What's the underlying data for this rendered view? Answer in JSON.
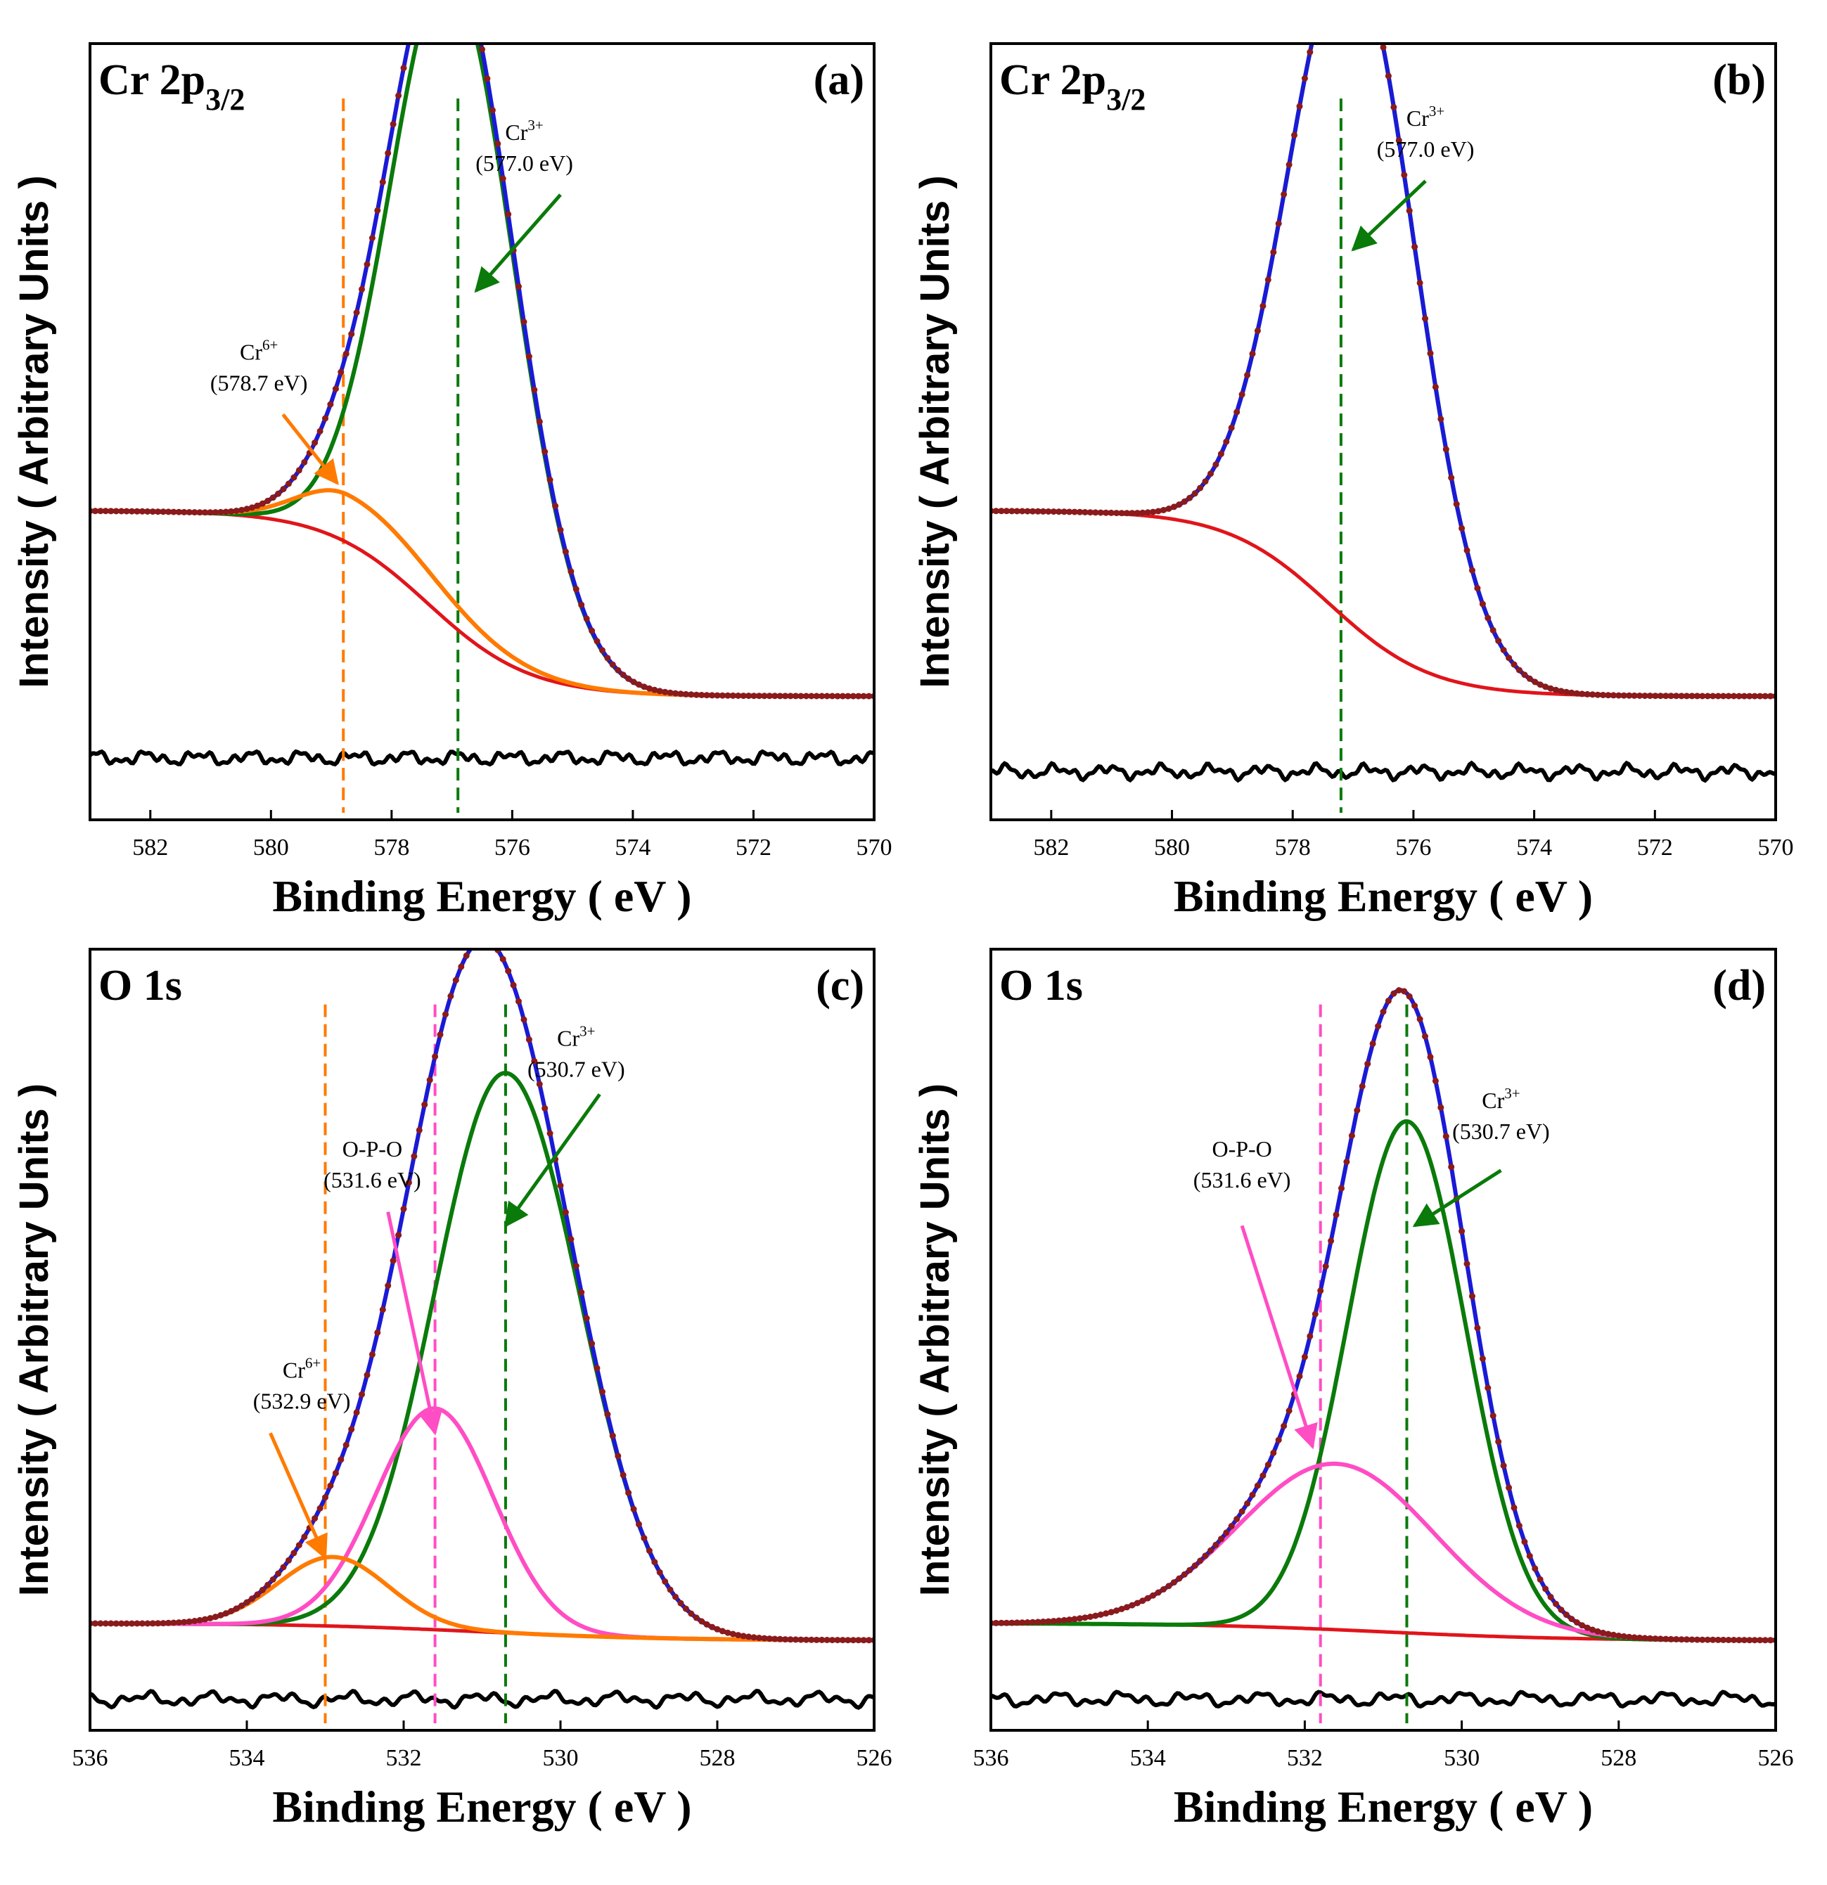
{
  "figure": {
    "panels": [
      {
        "id": "a",
        "title_main": "Cr 2p",
        "title_sub": "3/2",
        "tag": "(a)",
        "xlabel": "Binding Energy ( eV )",
        "ylabel": "Intensity ( Arbitrary Units )",
        "show_tick_labels": true
      },
      {
        "id": "b",
        "title_main": "Cr 2p",
        "title_sub": "3/2",
        "tag": "(b)",
        "xlabel": "Binding Energy ( eV )",
        "ylabel": "Intensity ( Arbitrary Units )",
        "show_tick_labels": true
      },
      {
        "id": "c",
        "title_main": "O 1s",
        "title_sub": "",
        "tag": "(c)",
        "xlabel": "Binding Energy ( eV )",
        "ylabel": "Intensity ( Arbitrary Units )",
        "show_tick_labels": true
      },
      {
        "id": "d",
        "title_main": "O 1s",
        "title_sub": "",
        "tag": "(d)",
        "xlabel": "Binding Energy ( eV )",
        "ylabel": "Intensity ( Arbitrary Units )",
        "show_tick_labels": true
      }
    ]
  },
  "chart_data": [
    {
      "type": "line",
      "panel": "a",
      "title": "Cr 2p3/2",
      "xlabel": "Binding Energy ( eV )",
      "ylabel": "Intensity ( Arbitrary Units )",
      "xlim": [
        583,
        570
      ],
      "xticks": [
        582,
        580,
        578,
        576,
        574,
        572,
        570
      ],
      "x_reversed": true,
      "ylim": [
        -0.13,
        1.0
      ],
      "baseline": {
        "high": 0.32,
        "low": 0.05,
        "center": 577.4,
        "width": 0.85
      },
      "residual_offset": -0.04,
      "components": [
        {
          "name": "Cr3+",
          "center": 577.0,
          "amplitude": 0.95,
          "sigma_left": 1.0,
          "sigma_right": 1.05,
          "color": "#0a7a0a"
        },
        {
          "name": "Cr6+",
          "center": 578.7,
          "amplitude": 0.07,
          "sigma_left": 0.8,
          "sigma_right": 1.5,
          "color": "#ff7a00"
        }
      ],
      "markers": [
        {
          "x": 578.8,
          "color": "#ff7a00"
        },
        {
          "x": 576.9,
          "color": "#0a7a0a"
        }
      ],
      "annotations": [
        {
          "label": "Cr",
          "sup": "3+",
          "value": "(577.0 eV)",
          "color": "#0a7a0a",
          "text_x": 575.8,
          "text_y": 0.86,
          "arrow_from": [
            575.2,
            0.78
          ],
          "arrow_to": [
            576.6,
            0.64
          ]
        },
        {
          "label": "Cr",
          "sup": "6+",
          "value": "(578.7 eV)",
          "color": "#ff7a00",
          "text_x": 580.2,
          "text_y": 0.54,
          "arrow_from": [
            579.8,
            0.46
          ],
          "arrow_to": [
            578.9,
            0.36
          ]
        }
      ]
    },
    {
      "type": "line",
      "panel": "b",
      "title": "Cr 2p3/2",
      "xlabel": "Binding Energy ( eV )",
      "ylabel": "Intensity ( Arbitrary Units )",
      "xlim": [
        583,
        570
      ],
      "xticks": [
        582,
        580,
        578,
        576,
        574,
        572,
        570
      ],
      "x_reversed": true,
      "ylim": [
        -0.13,
        1.0
      ],
      "baseline": {
        "high": 0.32,
        "low": 0.05,
        "center": 577.4,
        "width": 0.85
      },
      "residual_offset": -0.06,
      "components": [
        {
          "name": "Cr3+",
          "center": 577.0,
          "amplitude": 0.98,
          "sigma_left": 1.05,
          "sigma_right": 1.05,
          "color": "#0a7a0a"
        }
      ],
      "markers": [
        {
          "x": 577.2,
          "color": "#0a7a0a"
        }
      ],
      "annotations": [
        {
          "label": "Cr",
          "sup": "3+",
          "value": "(577.0 eV)",
          "color": "#0a7a0a",
          "text_x": 575.8,
          "text_y": 0.88,
          "arrow_from": [
            575.8,
            0.8
          ],
          "arrow_to": [
            577.0,
            0.7
          ]
        }
      ]
    },
    {
      "type": "line",
      "panel": "c",
      "title": "O 1s",
      "xlabel": "Binding Energy ( eV )",
      "ylabel": "Intensity ( Arbitrary Units )",
      "xlim": [
        536,
        526
      ],
      "xticks": [
        536,
        534,
        532,
        530,
        528,
        526
      ],
      "x_reversed": true,
      "ylim": [
        -0.13,
        1.0
      ],
      "baseline": {
        "high": 0.025,
        "low": 0.0,
        "center": 531.0,
        "width": 1.2
      },
      "residual_offset": -0.085,
      "components": [
        {
          "name": "Cr3+",
          "center": 530.7,
          "amplitude": 0.81,
          "sigma_left": 0.9,
          "sigma_right": 0.95,
          "color": "#0a7a0a"
        },
        {
          "name": "O-P-O",
          "center": 531.6,
          "amplitude": 0.32,
          "sigma_left": 0.75,
          "sigma_right": 0.75,
          "color": "#ff4dc4"
        },
        {
          "name": "Cr6+",
          "center": 532.9,
          "amplitude": 0.1,
          "sigma_left": 0.7,
          "sigma_right": 0.7,
          "color": "#ff7a00"
        }
      ],
      "markers": [
        {
          "x": 533.0,
          "color": "#ff7a00"
        },
        {
          "x": 531.6,
          "color": "#ff4dc4"
        },
        {
          "x": 530.7,
          "color": "#0a7a0a"
        }
      ],
      "annotations": [
        {
          "label": "Cr",
          "sup": "3+",
          "value": "(530.7 eV)",
          "color": "#0a7a0a",
          "text_x": 529.8,
          "text_y": 0.86,
          "arrow_from": [
            529.5,
            0.79
          ],
          "arrow_to": [
            530.7,
            0.6
          ]
        },
        {
          "label": "O-P-O",
          "sup": "",
          "value": "(531.6 eV)",
          "color": "#ff4dc4",
          "text_x": 532.4,
          "text_y": 0.7,
          "arrow_from": [
            532.2,
            0.62
          ],
          "arrow_to": [
            531.6,
            0.3
          ]
        },
        {
          "label": "Cr",
          "sup": "6+",
          "value": "(532.9 eV)",
          "color": "#ff7a00",
          "text_x": 533.3,
          "text_y": 0.38,
          "arrow_from": [
            533.7,
            0.3
          ],
          "arrow_to": [
            533.0,
            0.12
          ]
        }
      ]
    },
    {
      "type": "line",
      "panel": "d",
      "title": "O 1s",
      "xlabel": "Binding Energy ( eV )",
      "ylabel": "Intensity ( Arbitrary Units )",
      "xlim": [
        536,
        526
      ],
      "xticks": [
        536,
        534,
        532,
        530,
        528,
        526
      ],
      "x_reversed": true,
      "ylim": [
        -0.13,
        1.0
      ],
      "baseline": {
        "high": 0.025,
        "low": 0.0,
        "center": 531.0,
        "width": 1.2
      },
      "residual_offset": -0.085,
      "components": [
        {
          "name": "Cr3+",
          "center": 530.7,
          "amplitude": 0.74,
          "sigma_left": 0.75,
          "sigma_right": 0.75,
          "color": "#0a7a0a"
        },
        {
          "name": "O-P-O",
          "center": 531.6,
          "amplitude": 0.24,
          "sigma_left": 1.25,
          "sigma_right": 1.25,
          "color": "#ff4dc4"
        }
      ],
      "markers": [
        {
          "x": 531.8,
          "color": "#ff4dc4"
        },
        {
          "x": 530.7,
          "color": "#0a7a0a"
        }
      ],
      "annotations": [
        {
          "label": "Cr",
          "sup": "3+",
          "value": "(530.7 eV)",
          "color": "#0a7a0a",
          "text_x": 529.5,
          "text_y": 0.77,
          "arrow_from": [
            529.5,
            0.68
          ],
          "arrow_to": [
            530.6,
            0.6
          ]
        },
        {
          "label": "O-P-O",
          "sup": "",
          "value": "(531.6 eV)",
          "color": "#ff4dc4",
          "text_x": 532.8,
          "text_y": 0.7,
          "arrow_from": [
            532.8,
            0.6
          ],
          "arrow_to": [
            531.9,
            0.28
          ]
        }
      ]
    }
  ]
}
